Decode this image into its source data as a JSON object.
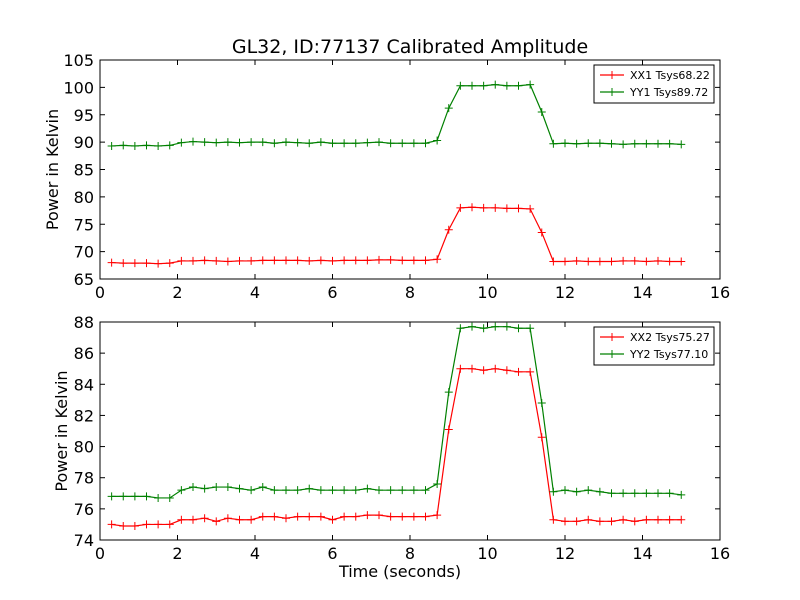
{
  "title": "GL32, ID:77137 Calibrated Amplitude",
  "chart_data": [
    {
      "type": "line",
      "ylabel": "Power in Kelvin",
      "xlabel": "",
      "xlim": [
        0,
        16
      ],
      "ylim": [
        65,
        105
      ],
      "xticks": [
        0,
        2,
        4,
        6,
        8,
        10,
        12,
        14,
        16
      ],
      "yticks": [
        65,
        70,
        75,
        80,
        85,
        90,
        95,
        100,
        105
      ],
      "legend_position": "top-right",
      "grid": false,
      "x": [
        0.3,
        0.6,
        0.9,
        1.2,
        1.5,
        1.8,
        2.1,
        2.4,
        2.7,
        3.0,
        3.3,
        3.6,
        3.9,
        4.2,
        4.5,
        4.8,
        5.1,
        5.4,
        5.7,
        6.0,
        6.3,
        6.6,
        6.9,
        7.2,
        7.5,
        7.8,
        8.1,
        8.4,
        8.7,
        9.0,
        9.3,
        9.6,
        9.9,
        10.2,
        10.5,
        10.8,
        11.1,
        11.4,
        11.7,
        12.0,
        12.3,
        12.6,
        12.9,
        13.2,
        13.5,
        13.8,
        14.1,
        14.4,
        14.7,
        15.0
      ],
      "series": [
        {
          "name": "XX1 Tsys68.22",
          "color": "#ff0000",
          "values": [
            68.0,
            67.9,
            67.9,
            67.9,
            67.8,
            67.9,
            68.3,
            68.3,
            68.4,
            68.3,
            68.2,
            68.3,
            68.3,
            68.4,
            68.4,
            68.4,
            68.4,
            68.3,
            68.4,
            68.3,
            68.4,
            68.4,
            68.4,
            68.5,
            68.5,
            68.4,
            68.4,
            68.4,
            68.6,
            74.0,
            78.0,
            78.1,
            78.0,
            78.0,
            77.9,
            77.9,
            77.8,
            73.5,
            68.2,
            68.2,
            68.3,
            68.2,
            68.2,
            68.2,
            68.3,
            68.3,
            68.2,
            68.3,
            68.2,
            68.2
          ]
        },
        {
          "name": "YY1 Tsys89.72",
          "color": "#008000",
          "values": [
            89.3,
            89.4,
            89.3,
            89.4,
            89.3,
            89.4,
            89.9,
            90.1,
            90.0,
            89.9,
            90.0,
            89.9,
            90.0,
            90.0,
            89.8,
            90.0,
            89.9,
            89.8,
            90.0,
            89.8,
            89.8,
            89.8,
            89.9,
            90.0,
            89.8,
            89.8,
            89.8,
            89.8,
            90.3,
            96.2,
            100.3,
            100.3,
            100.3,
            100.5,
            100.3,
            100.3,
            100.5,
            95.5,
            89.7,
            89.8,
            89.7,
            89.8,
            89.8,
            89.7,
            89.6,
            89.7,
            89.7,
            89.7,
            89.7,
            89.6
          ]
        }
      ]
    },
    {
      "type": "line",
      "ylabel": "Power in Kelvin",
      "xlabel": "Time (seconds)",
      "xlim": [
        0,
        16
      ],
      "ylim": [
        74,
        88
      ],
      "xticks": [
        0,
        2,
        4,
        6,
        8,
        10,
        12,
        14,
        16
      ],
      "yticks": [
        74,
        76,
        78,
        80,
        82,
        84,
        86,
        88
      ],
      "legend_position": "top-right",
      "grid": false,
      "x": [
        0.3,
        0.6,
        0.9,
        1.2,
        1.5,
        1.8,
        2.1,
        2.4,
        2.7,
        3.0,
        3.3,
        3.6,
        3.9,
        4.2,
        4.5,
        4.8,
        5.1,
        5.4,
        5.7,
        6.0,
        6.3,
        6.6,
        6.9,
        7.2,
        7.5,
        7.8,
        8.1,
        8.4,
        8.7,
        9.0,
        9.3,
        9.6,
        9.9,
        10.2,
        10.5,
        10.8,
        11.1,
        11.4,
        11.7,
        12.0,
        12.3,
        12.6,
        12.9,
        13.2,
        13.5,
        13.8,
        14.1,
        14.4,
        14.7,
        15.0
      ],
      "series": [
        {
          "name": "XX2 Tsys75.27",
          "color": "#ff0000",
          "values": [
            75.0,
            74.9,
            74.9,
            75.0,
            75.0,
            75.0,
            75.3,
            75.3,
            75.4,
            75.2,
            75.4,
            75.3,
            75.3,
            75.5,
            75.5,
            75.4,
            75.5,
            75.5,
            75.5,
            75.3,
            75.5,
            75.5,
            75.6,
            75.6,
            75.5,
            75.5,
            75.5,
            75.5,
            75.6,
            81.1,
            85.0,
            85.0,
            84.9,
            85.0,
            84.9,
            84.8,
            84.8,
            80.6,
            75.3,
            75.2,
            75.2,
            75.3,
            75.2,
            75.2,
            75.3,
            75.2,
            75.3,
            75.3,
            75.3,
            75.3
          ]
        },
        {
          "name": "YY2 Tsys77.10",
          "color": "#008000",
          "values": [
            76.8,
            76.8,
            76.8,
            76.8,
            76.7,
            76.7,
            77.2,
            77.4,
            77.3,
            77.4,
            77.4,
            77.3,
            77.2,
            77.4,
            77.2,
            77.2,
            77.2,
            77.3,
            77.2,
            77.2,
            77.2,
            77.2,
            77.3,
            77.2,
            77.2,
            77.2,
            77.2,
            77.2,
            77.6,
            83.5,
            87.6,
            87.7,
            87.6,
            87.7,
            87.7,
            87.6,
            87.6,
            82.8,
            77.1,
            77.2,
            77.1,
            77.2,
            77.1,
            77.0,
            77.0,
            77.0,
            77.0,
            77.0,
            77.0,
            76.9
          ]
        }
      ]
    }
  ]
}
